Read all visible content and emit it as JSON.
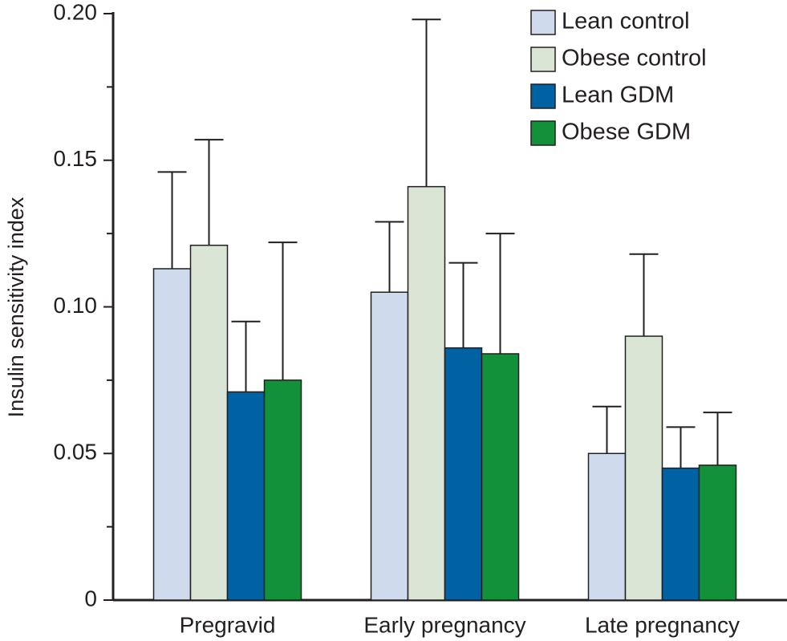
{
  "chart_data": {
    "type": "bar",
    "y_label": "Insulin sensitivity index",
    "categories": [
      "Pregravid",
      "Early pregnancy",
      "Late pregnancy"
    ],
    "series": [
      {
        "name": "Lean control",
        "color": "#cfdbec",
        "values": [
          0.113,
          0.105,
          0.05
        ],
        "errors": [
          0.033,
          0.024,
          0.016
        ]
      },
      {
        "name": "Obese control",
        "color": "#dbe5d6",
        "values": [
          0.121,
          0.141,
          0.09
        ],
        "errors": [
          0.036,
          0.057,
          0.028
        ]
      },
      {
        "name": "Lean GDM",
        "color": "#0061a3",
        "values": [
          0.071,
          0.086,
          0.045
        ],
        "errors": [
          0.024,
          0.029,
          0.014
        ]
      },
      {
        "name": "Obese GDM",
        "color": "#12903a",
        "values": [
          0.075,
          0.084,
          0.046
        ],
        "errors": [
          0.047,
          0.041,
          0.018
        ]
      }
    ],
    "ylim": [
      0,
      0.2
    ],
    "yticks": [
      0,
      0.05,
      {
        "value": 0.1,
        "label": "0.10"
      },
      0.15,
      {
        "value": 0.2,
        "label": "0.20"
      }
    ],
    "minor_yticks": [
      0.025,
      0.075,
      0.125,
      0.175
    ],
    "legend": "upper right"
  }
}
